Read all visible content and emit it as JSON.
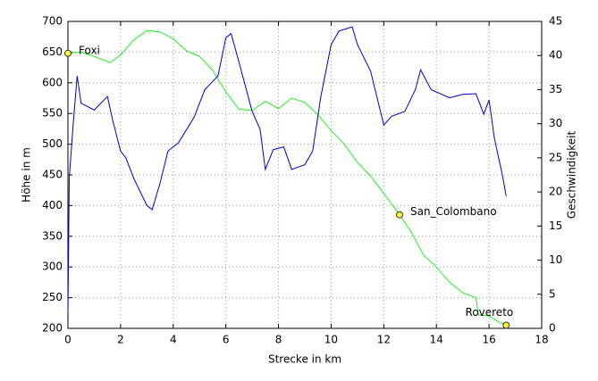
{
  "chart_data": {
    "type": "line",
    "xlabel": "Strecke in km",
    "ylabel": "Höhe in m",
    "y2label": "Geschwindigkeit",
    "xlim": [
      0,
      18
    ],
    "xticks": [
      0,
      2,
      4,
      6,
      8,
      10,
      12,
      14,
      16,
      18
    ],
    "ylim": [
      200,
      700
    ],
    "yticks": [
      200,
      250,
      300,
      350,
      400,
      450,
      500,
      550,
      600,
      650,
      700
    ],
    "y2lim": [
      0,
      45
    ],
    "y2ticks": [
      0,
      5,
      10,
      15,
      20,
      25,
      30,
      35,
      40,
      45
    ],
    "grid": true,
    "series": [
      {
        "color": "#22ee22",
        "x": [
          0,
          0.5,
          1.0,
          1.6,
          2.0,
          2.5,
          3.0,
          3.5,
          4.0,
          4.5,
          5.0,
          5.5,
          6.0,
          6.5,
          7.0,
          7.5,
          8.0,
          8.5,
          9.0,
          9.5,
          10.0,
          10.5,
          11.0,
          11.5,
          12.0,
          12.6,
          13.0,
          13.5,
          14.0,
          14.5,
          15.0,
          15.5,
          15.6,
          16.0,
          16.4,
          16.65
        ],
        "values": [
          648,
          650,
          643,
          633,
          645,
          670,
          685,
          683,
          672,
          652,
          643,
          620,
          585,
          557,
          555,
          570,
          558,
          575,
          568,
          548,
          522,
          500,
          470,
          448,
          420,
          385,
          360,
          320,
          300,
          275,
          258,
          250,
          222,
          220,
          210,
          205
        ]
      },
      {
        "color": "#0000cc",
        "axis": "y2",
        "x": [
          0,
          0.05,
          0.2,
          0.35,
          0.5,
          1.0,
          1.5,
          1.7,
          2.0,
          2.2,
          2.5,
          3.0,
          3.2,
          3.5,
          3.8,
          4.2,
          4.8,
          5.2,
          5.7,
          6.0,
          6.2,
          6.5,
          7.0,
          7.3,
          7.5,
          7.8,
          8.2,
          8.5,
          9.0,
          9.3,
          9.6,
          10.0,
          10.3,
          10.8,
          11.0,
          11.5,
          12.0,
          12.3,
          12.8,
          13.2,
          13.4,
          13.8,
          14.5,
          15.0,
          15.5,
          15.8,
          16.0,
          16.2,
          16.5,
          16.65
        ],
        "values": [
          2.4,
          22,
          30,
          37,
          33,
          32,
          34,
          30.5,
          26,
          25,
          22,
          18,
          17.4,
          21.3,
          26,
          27.2,
          31,
          35,
          37,
          42.6,
          43.2,
          39,
          31.8,
          29.2,
          23.3,
          26.2,
          26.6,
          23.3,
          24,
          26,
          33.8,
          41.6,
          43.6,
          44.2,
          41.6,
          37.7,
          29.8,
          31.1,
          31.8,
          35,
          37.9,
          35,
          33.8,
          34.3,
          34.4,
          31.4,
          33.5,
          27.9,
          22.6,
          19.4
        ]
      }
    ],
    "annotations": [
      {
        "text": "Foxi",
        "x": 0,
        "y": 648
      },
      {
        "text": "San_Colombano",
        "x": 12.6,
        "y": 385
      },
      {
        "text": "Rovereto",
        "x": 16.65,
        "y": 205
      }
    ]
  }
}
